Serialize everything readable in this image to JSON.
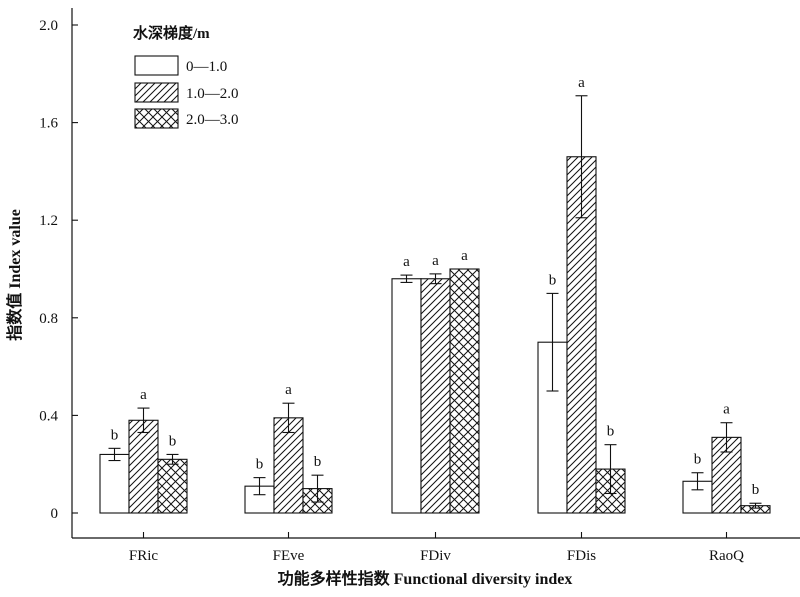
{
  "chart_data": {
    "type": "bar",
    "categories": [
      "FRic",
      "FEve",
      "FDiv",
      "FDis",
      "RaoQ"
    ],
    "ylabel": "指数值 Index value",
    "xlabel": "功能多样性指数 Functional diversity index",
    "ylim": [
      0,
      2.0
    ],
    "yticks": [
      {
        "value": 0,
        "label": "0"
      },
      {
        "value": 0.4,
        "label": "0.4"
      },
      {
        "value": 0.8,
        "label": "0.8"
      },
      {
        "value": 1.2,
        "label": "1.2"
      },
      {
        "value": 1.6,
        "label": "1.6"
      },
      {
        "value": 2.0,
        "label": "2.0"
      }
    ],
    "legend": {
      "title": "水深梯度/m",
      "placement": "top-left"
    },
    "series": [
      {
        "name": "0—1.0",
        "pattern": "none",
        "values": [
          0.24,
          0.11,
          0.96,
          0.7,
          0.13
        ],
        "errors": [
          0.025,
          0.035,
          0.015,
          0.2,
          0.035
        ],
        "letters": [
          "b",
          "b",
          "a",
          "b",
          "b"
        ]
      },
      {
        "name": "1.0—2.0",
        "pattern": "diagonal",
        "values": [
          0.38,
          0.39,
          0.96,
          1.46,
          0.31
        ],
        "errors": [
          0.05,
          0.06,
          0.02,
          0.25,
          0.06
        ],
        "letters": [
          "a",
          "a",
          "a",
          "a",
          "a"
        ]
      },
      {
        "name": "2.0—3.0",
        "pattern": "crosshatch",
        "values": [
          0.22,
          0.1,
          1.0,
          0.18,
          0.03
        ],
        "errors": [
          0.02,
          0.055,
          0.0,
          0.1,
          0.01
        ],
        "letters": [
          "b",
          "b",
          "a",
          "b",
          "b"
        ]
      }
    ],
    "colors": {
      "stroke": "#111111",
      "fill": "#ffffff"
    }
  }
}
